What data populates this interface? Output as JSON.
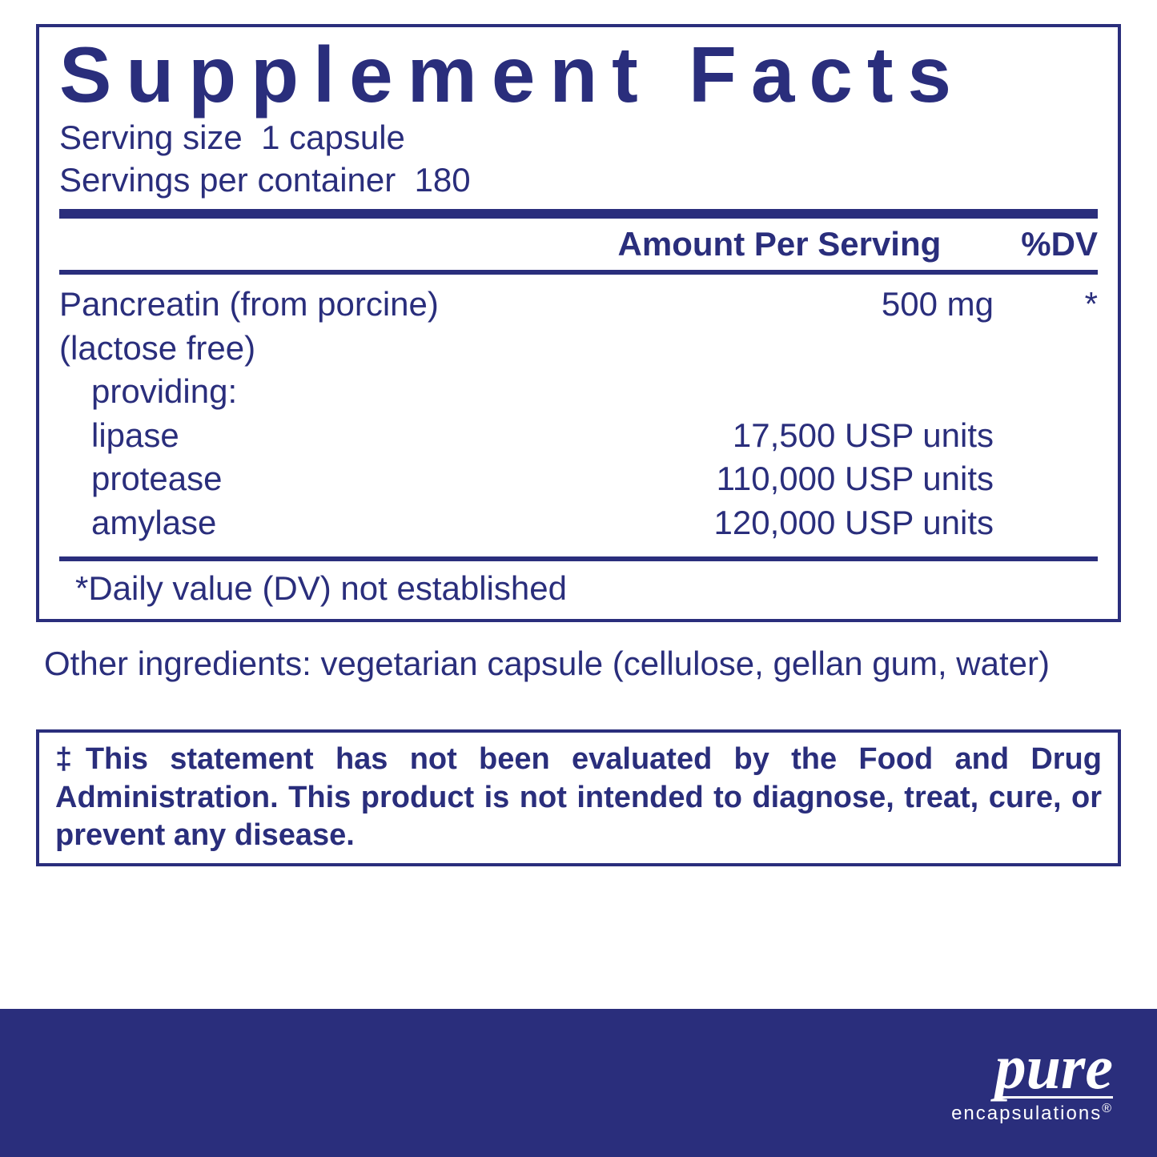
{
  "colors": {
    "primary": "#2a2e7c",
    "footer_bg": "#2a2e7c",
    "background": "#ffffff",
    "footer_text": "#ffffff"
  },
  "panel": {
    "title": "Supplement Facts",
    "serving_size_label": "Serving size",
    "serving_size_value": "1 capsule",
    "servings_per_label": "Servings per container",
    "servings_per_value": "180",
    "header_amount": "Amount Per Serving",
    "header_dv": "%DV",
    "main_ingredient": {
      "name": "Pancreatin (from porcine)",
      "qualifier": "(lactose free)",
      "amount": "500 mg",
      "dv": "*",
      "providing_label": "providing:",
      "components": [
        {
          "name": "lipase",
          "amount": "17,500 USP units"
        },
        {
          "name": "protease",
          "amount": "110,000 USP units"
        },
        {
          "name": "amylase",
          "amount": "120,000 USP units"
        }
      ]
    },
    "dv_note": "*Daily value (DV) not established"
  },
  "other_ingredients": "Other ingredients:  vegetarian capsule (cellulose, gellan gum, water)",
  "disclaimer": "‡This statement has not been evaluated by the Food and Drug Administration. This product is not intended to diagnose, treat, cure, or prevent any disease.",
  "brand": {
    "main": "pure",
    "sub": "encapsulations",
    "reg": "®"
  }
}
